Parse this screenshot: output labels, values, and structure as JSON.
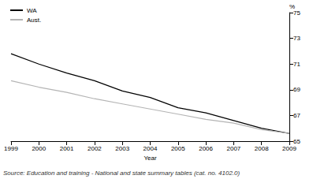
{
  "chart_data": {
    "type": "line",
    "x_label": "Year",
    "y_label": "%",
    "annotations": [
      "Source: Education and training - National and state summary tables (cat. no. 4102.0)"
    ],
    "categories": [
      "1999",
      "2000",
      "2001",
      "2002",
      "2003",
      "2004",
      "2005",
      "2006",
      "2007",
      "2008",
      "2009"
    ],
    "series": [
      {
        "name": "WA",
        "color": "#000000",
        "values": [
          71.8,
          71.0,
          70.3,
          69.7,
          68.9,
          68.4,
          67.6,
          67.2,
          66.6,
          66.0,
          65.6
        ]
      },
      {
        "name": "Aust.",
        "color": "#b4b4b4",
        "values": [
          69.7,
          69.2,
          68.8,
          68.3,
          67.9,
          67.5,
          67.1,
          66.7,
          66.4,
          65.9,
          65.6
        ]
      }
    ],
    "ylim": [
      65,
      75
    ],
    "yticks": [
      65,
      67,
      69,
      71,
      73,
      75
    ],
    "grid": false,
    "legend": "top-left"
  }
}
